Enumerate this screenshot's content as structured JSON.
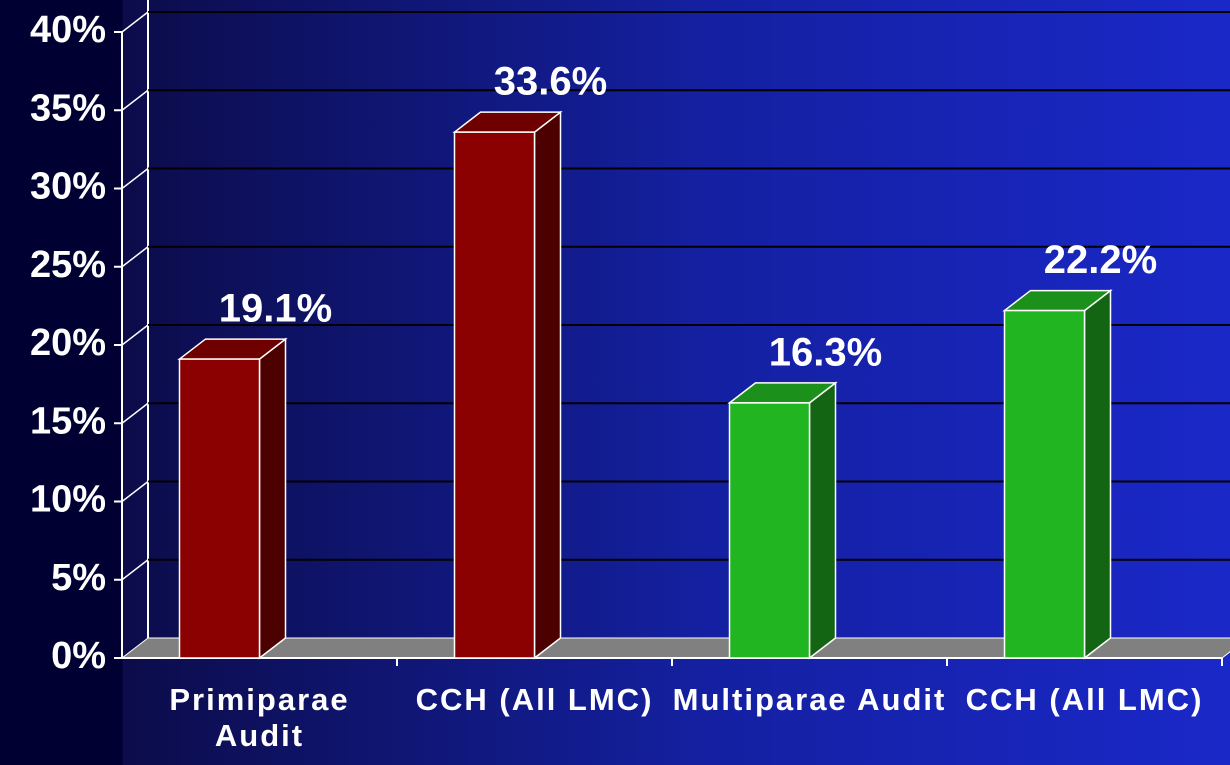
{
  "chart_data": {
    "type": "bar3d",
    "categories": [
      "Primiparae Audit",
      "CCH (All LMC)",
      "Multiparae Audit",
      "CCH (All LMC)"
    ],
    "values": [
      19.1,
      33.6,
      16.3,
      22.2
    ],
    "value_labels": [
      "19.1%",
      "33.6%",
      "16.3%",
      "22.2%"
    ],
    "colors": [
      "#8b0000",
      "#8b0000",
      "#22b522",
      "#22b522"
    ],
    "ylim": [
      0,
      40
    ],
    "yticks": [
      {
        "value": 0,
        "label": "0%"
      },
      {
        "value": 5,
        "label": "5%"
      },
      {
        "value": 10,
        "label": "10%"
      },
      {
        "value": 15,
        "label": "15%"
      },
      {
        "value": 20,
        "label": "20%"
      },
      {
        "value": 25,
        "label": "25%"
      },
      {
        "value": 30,
        "label": "30%"
      },
      {
        "value": 35,
        "label": "35%"
      },
      {
        "value": 40,
        "label": "40%"
      }
    ],
    "grid": true
  }
}
